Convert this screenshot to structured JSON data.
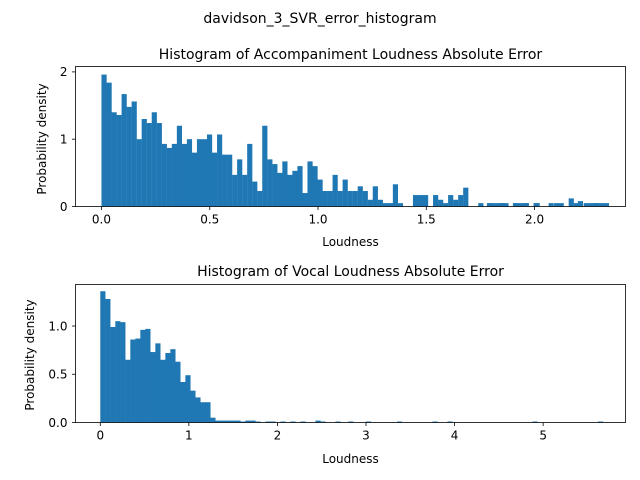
{
  "figure": {
    "suptitle": "davidson_3_SVR_error_histogram"
  },
  "colors": {
    "bar": "#1f77b4"
  },
  "chart_data": [
    {
      "type": "bar",
      "title": "Histogram of Accompaniment Loudness Absolute Error",
      "xlabel": "Loudness",
      "ylabel": "Probability density",
      "xlim": [
        -0.12,
        2.42
      ],
      "ylim": [
        0,
        2.08
      ],
      "xticks": [
        0.0,
        0.5,
        1.0,
        1.5,
        2.0
      ],
      "xtick_labels": [
        "0.0",
        "0.5",
        "1.0",
        "1.5",
        "2.0"
      ],
      "yticks": [
        0,
        1,
        2
      ],
      "ytick_labels": [
        "0",
        "1",
        "2"
      ],
      "bin_start": 0.0,
      "bin_width": 0.0232,
      "values": [
        1.96,
        1.84,
        1.4,
        1.36,
        1.67,
        1.48,
        1.56,
        1.0,
        1.3,
        1.24,
        1.4,
        1.24,
        0.93,
        0.87,
        0.93,
        1.2,
        0.93,
        1.0,
        0.8,
        1.0,
        1.0,
        1.07,
        0.8,
        1.07,
        0.77,
        0.77,
        0.47,
        0.7,
        0.47,
        0.93,
        0.37,
        0.23,
        1.2,
        0.7,
        0.63,
        0.5,
        0.67,
        0.47,
        0.53,
        0.6,
        0.2,
        0.67,
        0.6,
        0.4,
        0.23,
        0.23,
        0.47,
        0.23,
        0.4,
        0.23,
        0.23,
        0.3,
        0.23,
        0.1,
        0.3,
        0.1,
        0.05,
        0.05,
        0.33,
        0.05,
        0.0,
        0.0,
        0.17,
        0.17,
        0.17,
        0.0,
        0.17,
        0.1,
        0.05,
        0.17,
        0.1,
        0.17,
        0.28,
        0.0,
        0.0,
        0.05,
        0.0,
        0.05,
        0.05,
        0.05,
        0.05,
        0.0,
        0.05,
        0.05,
        0.05,
        0.0,
        0.05,
        0.0,
        0.0,
        0.05,
        0.0,
        0.05,
        0.0,
        0.12,
        0.05,
        0.0,
        0.05,
        0.05,
        0.05,
        0.05
      ],
      "sparse_bars": [
        [
          1.78,
          0.05
        ],
        [
          1.84,
          0.05
        ],
        [
          1.9,
          0.05
        ],
        [
          1.95,
          0.05
        ],
        [
          2.0,
          0.05
        ],
        [
          2.09,
          0.05
        ],
        [
          2.2,
          0.08
        ],
        [
          2.27,
          0.05
        ],
        [
          2.32,
          0.05
        ]
      ]
    },
    {
      "type": "bar",
      "title": "Histogram of Vocal Loudness Absolute Error",
      "xlabel": "Loudness",
      "ylabel": "Probability density",
      "xlim": [
        -0.28,
        5.93
      ],
      "ylim": [
        0,
        1.43
      ],
      "xticks": [
        0,
        1,
        2,
        3,
        4,
        5
      ],
      "xtick_labels": [
        "0",
        "1",
        "2",
        "3",
        "4",
        "5"
      ],
      "yticks": [
        0.0,
        0.5,
        1.0
      ],
      "ytick_labels": [
        "0.0",
        "0.5",
        "1.0"
      ],
      "bin_start": 0.0,
      "bin_width": 0.0565,
      "values": [
        1.36,
        1.28,
        0.99,
        1.05,
        1.04,
        0.65,
        0.86,
        0.87,
        0.96,
        0.97,
        0.73,
        0.82,
        0.65,
        0.72,
        0.76,
        0.63,
        0.42,
        0.49,
        0.33,
        0.26,
        0.21,
        0.21,
        0.05,
        0.02,
        0.02,
        0.02,
        0.02,
        0.02,
        0.01,
        0.02,
        0.02,
        0.01,
        0.0,
        0.01,
        0.01,
        0.0,
        0.01,
        0.0,
        0.01,
        0.0,
        0.01,
        0.0,
        0.0,
        0.02,
        0.01,
        0.0,
        0.0,
        0.01,
        0.0,
        0.0
      ],
      "sparse_bars": [
        [
          2.8,
          0.01
        ],
        [
          3.0,
          0.01
        ],
        [
          3.35,
          0.01
        ],
        [
          3.75,
          0.01
        ],
        [
          3.92,
          0.01
        ],
        [
          4.88,
          0.01
        ],
        [
          5.62,
          0.01
        ]
      ]
    }
  ]
}
